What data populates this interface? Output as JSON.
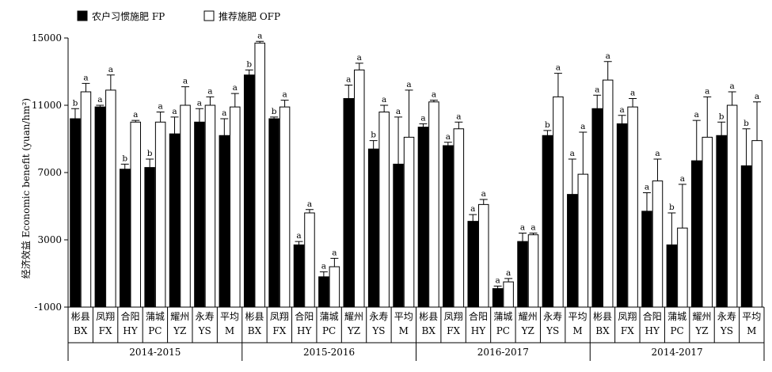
{
  "chart_data": {
    "type": "bar",
    "ylabel": "经济效益 Economic benefit (yuan/hm²)",
    "ylim": [
      -1000,
      15000
    ],
    "yticks": [
      -1000,
      3000,
      7000,
      11000,
      15000
    ],
    "legend": [
      "农户习惯施肥 FP",
      "推荐施肥 OFP"
    ],
    "legend_placement": "top-left",
    "colors": {
      "FP": "#000000",
      "OFP": "#ffffff"
    },
    "groups": [
      {
        "name": "2014-2015",
        "start": 0,
        "count": 7
      },
      {
        "name": "2015-2016",
        "start": 7,
        "count": 7
      },
      {
        "name": "2016-2017",
        "start": 14,
        "count": 7
      },
      {
        "name": "2014-2017",
        "start": 21,
        "count": 7
      }
    ],
    "categories": [
      {
        "zh": "彬县",
        "en": "BX"
      },
      {
        "zh": "凤翔",
        "en": "FX"
      },
      {
        "zh": "合阳",
        "en": "HY"
      },
      {
        "zh": "蒲城",
        "en": "PC"
      },
      {
        "zh": "耀州",
        "en": "YZ"
      },
      {
        "zh": "永寿",
        "en": "YS"
      },
      {
        "zh": "平均",
        "en": "M"
      },
      {
        "zh": "彬县",
        "en": "BX"
      },
      {
        "zh": "凤翔",
        "en": "FX"
      },
      {
        "zh": "合阳",
        "en": "HY"
      },
      {
        "zh": "蒲城",
        "en": "PC"
      },
      {
        "zh": "耀州",
        "en": "YZ"
      },
      {
        "zh": "永寿",
        "en": "YS"
      },
      {
        "zh": "平均",
        "en": "M"
      },
      {
        "zh": "彬县",
        "en": "BX"
      },
      {
        "zh": "凤翔",
        "en": "FX"
      },
      {
        "zh": "合阳",
        "en": "HY"
      },
      {
        "zh": "蒲城",
        "en": "PC"
      },
      {
        "zh": "耀州",
        "en": "YZ"
      },
      {
        "zh": "永寿",
        "en": "YS"
      },
      {
        "zh": "平均",
        "en": "M"
      },
      {
        "zh": "彬县",
        "en": "BX"
      },
      {
        "zh": "凤翔",
        "en": "FX"
      },
      {
        "zh": "合阳",
        "en": "HY"
      },
      {
        "zh": "蒲城",
        "en": "PC"
      },
      {
        "zh": "耀州",
        "en": "YZ"
      },
      {
        "zh": "永寿",
        "en": "YS"
      },
      {
        "zh": "平均",
        "en": "M"
      }
    ],
    "series": [
      {
        "name": "农户习惯施肥 FP",
        "values": [
          10200,
          10900,
          7200,
          7300,
          9300,
          10000,
          9200,
          12800,
          10200,
          2700,
          800,
          11400,
          8400,
          7500,
          9700,
          8600,
          4100,
          100,
          2900,
          9200,
          5700,
          10800,
          9900,
          4700,
          2700,
          7700,
          9200,
          7400
        ],
        "errors": [
          600,
          100,
          300,
          500,
          1000,
          800,
          1000,
          300,
          100,
          200,
          300,
          800,
          500,
          2800,
          200,
          200,
          400,
          150,
          500,
          300,
          2100,
          800,
          500,
          1100,
          1900,
          2400,
          800,
          2200
        ],
        "sig": [
          "b",
          "a",
          "b",
          "b",
          "a",
          "a",
          "a",
          "b",
          "b",
          "a",
          "a",
          "a",
          "b",
          "a",
          "a",
          "a",
          "a",
          "a",
          "a",
          "b",
          "a",
          "a",
          "a",
          "a",
          "b",
          "a",
          "b",
          "b"
        ]
      },
      {
        "name": "推荐施肥 OFP",
        "values": [
          11800,
          11900,
          10000,
          10000,
          11000,
          11000,
          10900,
          14700,
          10900,
          4600,
          1400,
          13100,
          10600,
          9100,
          11200,
          9600,
          5100,
          500,
          3300,
          11500,
          6900,
          12500,
          10900,
          6500,
          3700,
          9100,
          11000,
          8900
        ],
        "errors": [
          500,
          900,
          100,
          600,
          1100,
          500,
          800,
          100,
          400,
          200,
          500,
          400,
          400,
          2800,
          100,
          400,
          300,
          200,
          100,
          1400,
          2500,
          1100,
          500,
          1300,
          2600,
          2400,
          800,
          2300
        ],
        "sig": [
          "a",
          "a",
          "a",
          "a",
          "a",
          "a",
          "a",
          "a",
          "a",
          "a",
          "a",
          "a",
          "a",
          "a",
          "a",
          "a",
          "a",
          "a",
          "a",
          "a",
          "a",
          "a",
          "a",
          "a",
          "a",
          "a",
          "a",
          "a"
        ]
      }
    ]
  }
}
